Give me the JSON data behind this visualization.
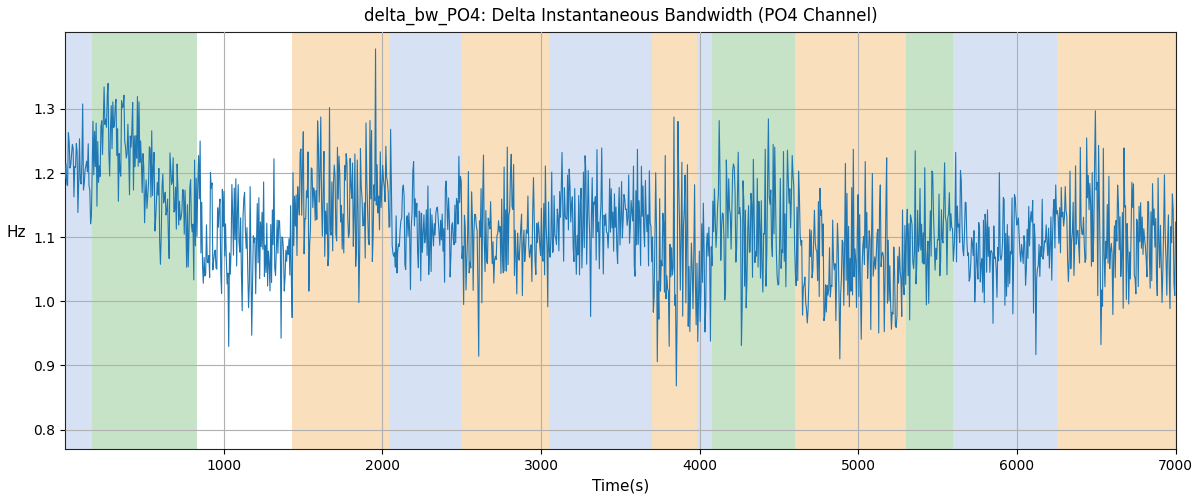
{
  "title": "delta_bw_PO4: Delta Instantaneous Bandwidth (PO4 Channel)",
  "xlabel": "Time(s)",
  "ylabel": "Hz",
  "xlim": [
    0,
    7000
  ],
  "ylim": [
    0.77,
    1.42
  ],
  "line_color": "#1f77b4",
  "line_width": 0.8,
  "background_color": "#ffffff",
  "grid_color": "#b0b0b0",
  "bands": [
    {
      "xmin": 0,
      "xmax": 170,
      "color": "#aec6e8",
      "alpha": 0.5
    },
    {
      "xmin": 170,
      "xmax": 830,
      "color": "#90c890",
      "alpha": 0.5
    },
    {
      "xmin": 1430,
      "xmax": 2050,
      "color": "#f5c07a",
      "alpha": 0.5
    },
    {
      "xmin": 2050,
      "xmax": 2500,
      "color": "#aec6e8",
      "alpha": 0.5
    },
    {
      "xmin": 2500,
      "xmax": 3050,
      "color": "#f5c07a",
      "alpha": 0.5
    },
    {
      "xmin": 3050,
      "xmax": 3700,
      "color": "#aec6e8",
      "alpha": 0.5
    },
    {
      "xmin": 3700,
      "xmax": 3980,
      "color": "#f5c07a",
      "alpha": 0.5
    },
    {
      "xmin": 3980,
      "xmax": 4080,
      "color": "#aec6e8",
      "alpha": 0.5
    },
    {
      "xmin": 4080,
      "xmax": 4600,
      "color": "#90c890",
      "alpha": 0.5
    },
    {
      "xmin": 4600,
      "xmax": 5300,
      "color": "#f5c07a",
      "alpha": 0.5
    },
    {
      "xmin": 5300,
      "xmax": 5600,
      "color": "#90c890",
      "alpha": 0.5
    },
    {
      "xmin": 5600,
      "xmax": 6250,
      "color": "#aec6e8",
      "alpha": 0.5
    },
    {
      "xmin": 6250,
      "xmax": 7000,
      "color": "#f5c07a",
      "alpha": 0.5
    }
  ],
  "seed": 12345,
  "n_points": 1400,
  "yticks": [
    0.8,
    0.9,
    1.0,
    1.1,
    1.2,
    1.3
  ],
  "xticks": [
    1000,
    2000,
    3000,
    4000,
    5000,
    6000,
    7000
  ],
  "figsize": [
    12.0,
    5.0
  ],
  "dpi": 100
}
